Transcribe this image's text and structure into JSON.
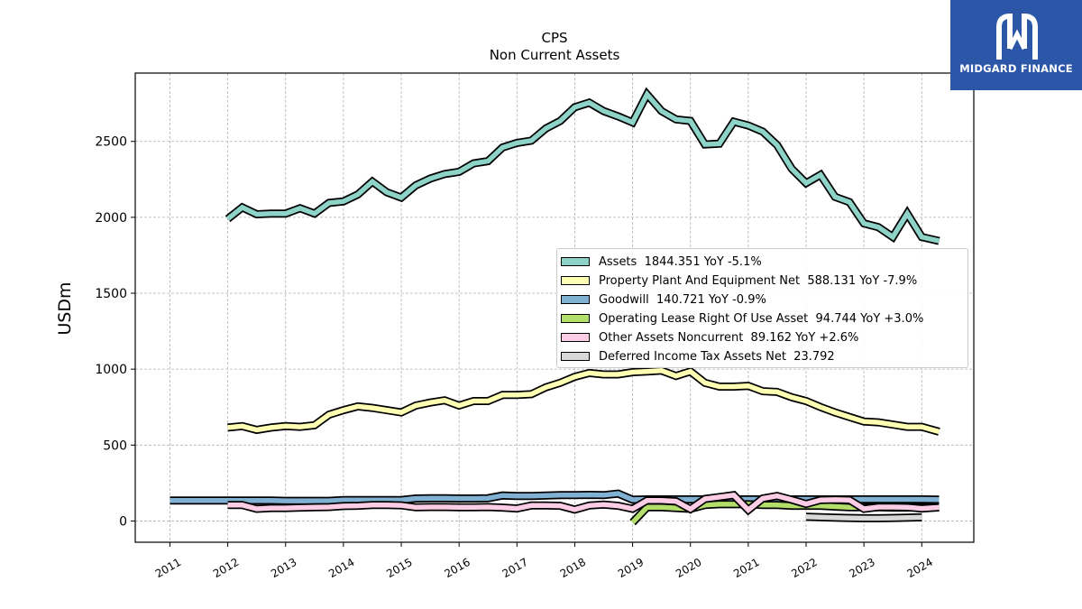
{
  "brand": {
    "name": "MIDGARD FINANCE",
    "bg_color": "#2c57a8"
  },
  "chart_data": {
    "type": "line",
    "title": "CPS",
    "subtitle": "Non Current  Assets",
    "ylabel": "USDm",
    "xlabel": "",
    "ylim": [
      -140,
      2950
    ],
    "xlim": [
      2010.4,
      2024.9
    ],
    "yticks": [
      0,
      500,
      1000,
      1500,
      2000,
      2500
    ],
    "xticks": [
      "2011",
      "2012",
      "2013",
      "2014",
      "2015",
      "2016",
      "2017",
      "2018",
      "2019",
      "2020",
      "2021",
      "2022",
      "2023",
      "2024"
    ],
    "grid": true,
    "legend_position": "center-right",
    "series": [
      {
        "name": "Assets",
        "legend_label": "Assets  1844.351 YoY -5.1%",
        "color": "#8dd3c7",
        "x": [
          2012.0,
          2012.25,
          2012.5,
          2012.75,
          2013.0,
          2013.25,
          2013.5,
          2013.75,
          2014.0,
          2014.25,
          2014.5,
          2014.75,
          2015.0,
          2015.25,
          2015.5,
          2015.75,
          2016.0,
          2016.25,
          2016.5,
          2016.75,
          2017.0,
          2017.25,
          2017.5,
          2017.75,
          2018.0,
          2018.25,
          2018.5,
          2018.75,
          2019.0,
          2019.25,
          2019.5,
          2019.75,
          2020.0,
          2020.25,
          2020.5,
          2020.75,
          2021.0,
          2021.25,
          2021.5,
          2021.75,
          2022.0,
          2022.25,
          2022.5,
          2022.75,
          2023.0,
          2023.25,
          2023.5,
          2023.75,
          2024.0,
          2024.3
        ],
        "y": [
          1990,
          2065,
          2020,
          2025,
          2025,
          2060,
          2025,
          2095,
          2105,
          2150,
          2235,
          2165,
          2130,
          2210,
          2255,
          2285,
          2300,
          2355,
          2370,
          2460,
          2490,
          2505,
          2585,
          2635,
          2725,
          2755,
          2700,
          2665,
          2625,
          2810,
          2700,
          2645,
          2635,
          2480,
          2485,
          2630,
          2605,
          2565,
          2475,
          2320,
          2225,
          2280,
          2135,
          2100,
          1960,
          1935,
          1870,
          2025,
          1870,
          1844.351
        ]
      },
      {
        "name": "Property Plant And Equipment Net",
        "legend_label": "Property Plant And Equipment Net  588.131 YoY -7.9%",
        "color": "#ffffb3",
        "x": [
          2012.0,
          2012.25,
          2012.5,
          2012.75,
          2013.0,
          2013.25,
          2013.5,
          2013.75,
          2014.0,
          2014.25,
          2014.5,
          2014.75,
          2015.0,
          2015.25,
          2015.5,
          2015.75,
          2016.0,
          2016.25,
          2016.5,
          2016.75,
          2017.0,
          2017.25,
          2017.5,
          2017.75,
          2018.0,
          2018.25,
          2018.5,
          2018.75,
          2019.0,
          2019.25,
          2019.5,
          2019.75,
          2020.0,
          2020.25,
          2020.5,
          2020.75,
          2021.0,
          2021.25,
          2021.5,
          2021.75,
          2022.0,
          2022.25,
          2022.5,
          2022.75,
          2023.0,
          2023.25,
          2023.5,
          2023.75,
          2024.0,
          2024.3
        ],
        "y": [
          615,
          625,
          600,
          615,
          625,
          620,
          630,
          700,
          730,
          755,
          745,
          730,
          715,
          760,
          780,
          795,
          760,
          790,
          790,
          830,
          830,
          835,
          880,
          910,
          950,
          975,
          965,
          965,
          980,
          985,
          990,
          955,
          985,
          910,
          885,
          885,
          890,
          855,
          850,
          815,
          790,
          750,
          715,
          685,
          655,
          650,
          635,
          620,
          620,
          588.131
        ]
      },
      {
        "name": "Goodwill",
        "legend_label": "Goodwill  140.721 YoY -0.9%",
        "color": "#80b1d3",
        "x": [
          2011.0,
          2011.25,
          2011.5,
          2011.75,
          2012.0,
          2012.25,
          2012.5,
          2012.75,
          2013.0,
          2013.25,
          2013.5,
          2013.75,
          2014.0,
          2014.25,
          2014.5,
          2014.75,
          2015.0,
          2015.25,
          2015.5,
          2015.75,
          2016.0,
          2016.25,
          2016.5,
          2016.75,
          2017.0,
          2017.25,
          2017.5,
          2017.75,
          2018.0,
          2018.25,
          2018.5,
          2018.75,
          2019.0,
          2019.25,
          2019.5,
          2019.75,
          2020.0,
          2020.25,
          2020.5,
          2020.75,
          2021.0,
          2021.25,
          2021.5,
          2021.75,
          2022.0,
          2022.25,
          2022.5,
          2022.75,
          2023.0,
          2023.25,
          2023.5,
          2023.75,
          2024.0,
          2024.3
        ],
        "y": [
          135,
          135,
          135,
          135,
          135,
          135,
          135,
          135,
          133,
          133,
          133,
          133,
          138,
          138,
          138,
          138,
          138,
          148,
          150,
          150,
          148,
          148,
          150,
          168,
          165,
          165,
          168,
          170,
          170,
          172,
          170,
          180,
          140,
          142,
          142,
          142,
          142,
          142,
          142,
          142,
          142,
          142,
          142,
          142,
          142,
          142,
          142,
          142,
          142,
          142,
          142,
          142,
          142,
          140.721
        ]
      },
      {
        "name": "Operating Lease Right Of Use Asset",
        "legend_label": "Operating Lease Right Of Use Asset  94.744 YoY +3.0%",
        "color": "#b3de69",
        "x": [
          2019.0,
          2019.25,
          2019.5,
          2019.75,
          2020.0,
          2020.25,
          2020.5,
          2020.75,
          2021.0,
          2021.25,
          2021.5,
          2021.75,
          2022.0,
          2022.25,
          2022.5,
          2022.75,
          2023.0,
          2023.25,
          2023.5,
          2023.75,
          2024.0,
          2024.3
        ],
        "y": [
          -10,
          90,
          90,
          85,
          80,
          105,
          110,
          110,
          110,
          105,
          105,
          100,
          100,
          100,
          95,
          90,
          90,
          90,
          88,
          88,
          92,
          94.744
        ]
      },
      {
        "name": "Other Assets Noncurrent",
        "legend_label": "Other Assets Noncurrent  89.162 YoY +2.6%",
        "color": "#fccde5",
        "x": [
          2012.0,
          2012.25,
          2012.5,
          2012.75,
          2013.0,
          2013.25,
          2013.5,
          2013.75,
          2014.0,
          2014.25,
          2014.5,
          2014.75,
          2015.0,
          2015.25,
          2015.5,
          2015.75,
          2016.0,
          2016.25,
          2016.5,
          2016.75,
          2017.0,
          2017.25,
          2017.5,
          2017.75,
          2018.0,
          2018.25,
          2018.5,
          2018.75,
          2019.0,
          2019.25,
          2019.5,
          2019.75,
          2020.0,
          2020.25,
          2020.5,
          2020.75,
          2021.0,
          2021.25,
          2021.5,
          2021.75,
          2022.0,
          2022.25,
          2022.5,
          2022.75,
          2023.0,
          2023.25,
          2023.5,
          2023.75,
          2024.0,
          2024.3
        ],
        "y": [
          105,
          105,
          80,
          85,
          85,
          88,
          90,
          92,
          98,
          100,
          105,
          105,
          103,
          90,
          92,
          92,
          90,
          90,
          92,
          88,
          82,
          102,
          102,
          100,
          75,
          102,
          108,
          100,
          80,
          135,
          135,
          130,
          78,
          145,
          158,
          170,
          72,
          148,
          165,
          140,
          112,
          138,
          140,
          138,
          80,
          92,
          92,
          90,
          82,
          89.162
        ]
      },
      {
        "name": "Deferred Income Tax Assets Net",
        "legend_label": "Deferred Income Tax Assets Net  23.792",
        "color": "#d9d9d9",
        "x": [
          2022.0,
          2022.25,
          2022.5,
          2022.75,
          2023.0,
          2023.25,
          2023.5,
          2023.75,
          2024.0
        ],
        "y": [
          28,
          25,
          22,
          20,
          18,
          18,
          20,
          22,
          23.792
        ]
      }
    ]
  }
}
